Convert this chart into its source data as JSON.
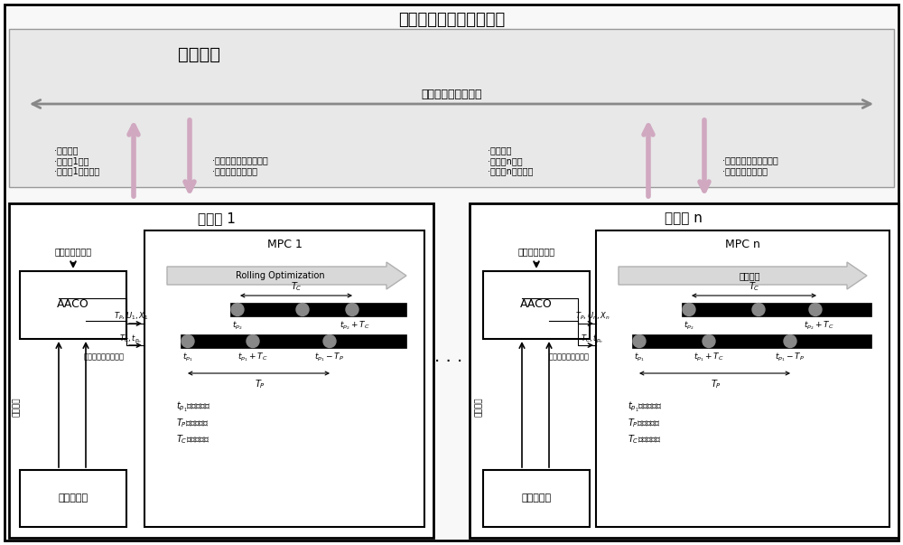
{
  "title": "分布式模型预测控制框架",
  "comm_window": "通讯窗口",
  "comm_network": "无人机编队通信网络",
  "uav1_label": "无人机 1",
  "uavn_label": "无人机 n",
  "mpc1_label": "MPC 1",
  "mpcn_label": "MPC n",
  "aaco_label": "AACO",
  "sensor1_label": "机载传感器",
  "sensorn_label": "机载传感器",
  "rolling_opt_en": "Rolling Optimization",
  "rolling_opt_cn": "滚动优化",
  "uav1_left_text": "·探测数据\n·无人机1状态\n·无人机1控制信息",
  "uav1_mid_text": "·其它无人机的探测数据\n·任务区域划分结果",
  "uavn_left_text": "·探测数据\n·无人机n状态\n·无人机n控制信息",
  "uavn_right_text": "·其它无人机的探测数据\n·任务区域划分结果",
  "other_uav_data": "其它无人机数据",
  "real_time_data": "无人机实时状态数据",
  "env_data": "环境数据",
  "bg_color": "#f0f0f0",
  "comm_bg": "#e0e0e0",
  "arrow_pink": "#d8b0c8",
  "arrow_gray": "#aaaaaa"
}
